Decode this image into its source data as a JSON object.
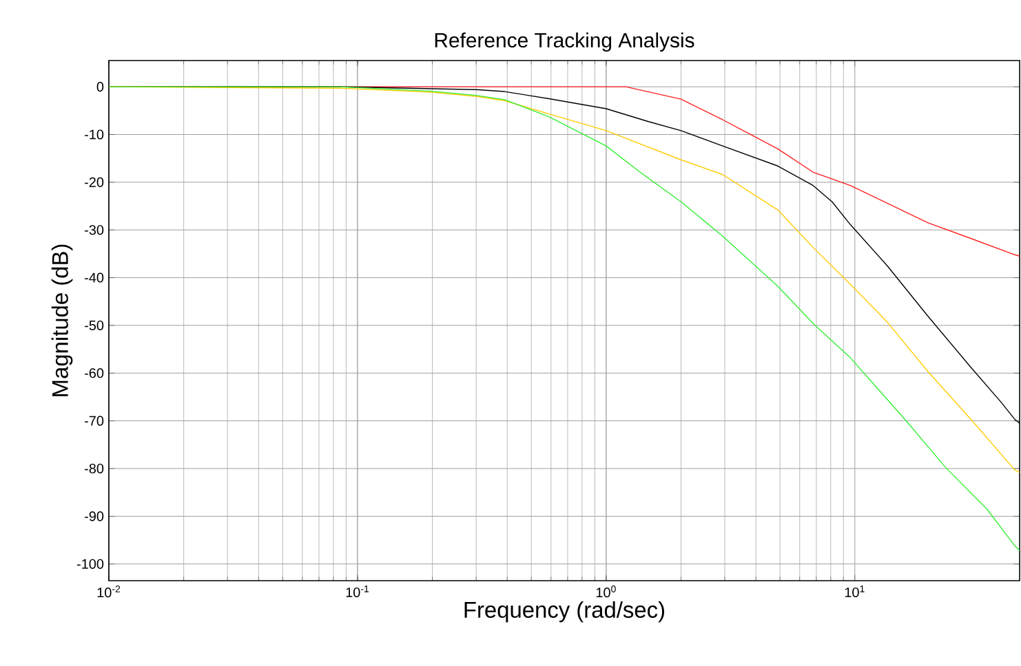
{
  "chart_data": {
    "type": "line",
    "title": "Reference Tracking Analysis",
    "xlabel": "Frequency (rad/sec)",
    "ylabel": "Magnitude (dB)",
    "log": "x",
    "grid": true,
    "xlim": [
      0.01,
      46
    ],
    "ylim": [
      -103.5,
      5.5
    ],
    "xticks": [
      {
        "value": 0.01,
        "label": "10$^{-2}$"
      },
      {
        "value": 0.1,
        "label": "10$^{-1}$"
      },
      {
        "value": 1,
        "label": "10$^{0}$"
      },
      {
        "value": 10,
        "label": "10$^{1}$"
      }
    ],
    "yticks": [
      -100,
      -90,
      -80,
      -70,
      -60,
      -50,
      -40,
      -30,
      -20,
      -10,
      0
    ],
    "series": [
      {
        "color": "#ff2020",
        "x": [
          0.01,
          0.5,
          1.2,
          2.0,
          2.94,
          3.84,
          4.9,
          6.8,
          9.6,
          19.7,
          29,
          44,
          46
        ],
        "values": [
          0,
          0,
          0,
          -2.6,
          -6.9,
          -10.1,
          -13,
          -17.9,
          -20.7,
          -28.5,
          -31.7,
          -35.2,
          -35.5
        ]
      },
      {
        "color": "#000000",
        "x": [
          0.01,
          0.085,
          0.3,
          0.39,
          0.59,
          1.0,
          1.48,
          2.0,
          2.94,
          4.9,
          6.8,
          8.1,
          9.6,
          13.5,
          19.7,
          29.3,
          38.6,
          44,
          46
        ],
        "values": [
          0,
          0,
          -0.6,
          -1.0,
          -2.5,
          -4.6,
          -7.3,
          -9.2,
          -12.4,
          -16.6,
          -20.7,
          -24.1,
          -28.9,
          -37.5,
          -48.1,
          -58.8,
          -66,
          -69.7,
          -70.5
        ]
      },
      {
        "color": "#ffcc00",
        "x": [
          0.01,
          0.085,
          0.195,
          0.3,
          0.39,
          0.59,
          1.0,
          2.0,
          2.94,
          4.9,
          6.8,
          9.6,
          13.5,
          19.7,
          29.3,
          44,
          46
        ],
        "values": [
          0,
          -0.3,
          -1.1,
          -2,
          -2.9,
          -5.7,
          -9.2,
          -15.3,
          -18.4,
          -25.8,
          -33.7,
          -41.4,
          -49.3,
          -59.7,
          -69.7,
          -80.3,
          -80.8
        ]
      },
      {
        "color": "#33ee33",
        "x": [
          0.01,
          0.085,
          0.195,
          0.3,
          0.39,
          0.59,
          1.0,
          1.37,
          2.0,
          2.94,
          4.9,
          6.8,
          9.6,
          15.9,
          23.2,
          34,
          44,
          46
        ],
        "values": [
          0,
          0,
          -0.9,
          -1.8,
          -2.7,
          -6.3,
          -12.4,
          -17.9,
          -24.1,
          -31.3,
          -41.8,
          -49.6,
          -56.8,
          -69.7,
          -79.8,
          -88.5,
          -96.2,
          -97.2
        ]
      }
    ]
  }
}
